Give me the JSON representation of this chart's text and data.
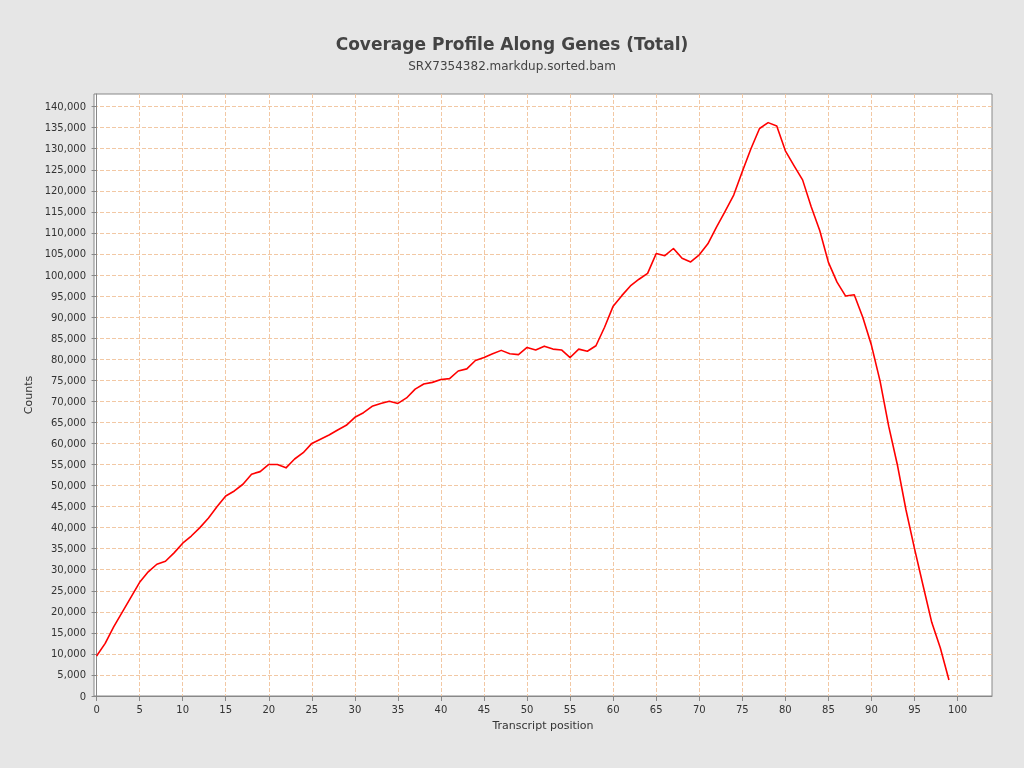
{
  "chart_data": {
    "type": "line",
    "title": "Coverage Profile Along Genes (Total)",
    "subtitle": "SRX7354382.markdup.sorted.bam",
    "xlabel": "Transcript position",
    "ylabel": "Counts",
    "x": [
      0,
      1,
      2,
      3,
      4,
      5,
      6,
      7,
      8,
      9,
      10,
      11,
      12,
      13,
      14,
      15,
      16,
      17,
      18,
      19,
      20,
      21,
      22,
      23,
      24,
      25,
      26,
      27,
      28,
      29,
      30,
      31,
      32,
      33,
      34,
      35,
      36,
      37,
      38,
      39,
      40,
      41,
      42,
      43,
      44,
      45,
      46,
      47,
      48,
      49,
      50,
      51,
      52,
      53,
      54,
      55,
      56,
      57,
      58,
      59,
      60,
      61,
      62,
      63,
      64,
      65,
      66,
      67,
      68,
      69,
      70,
      71,
      72,
      73,
      74,
      75,
      76,
      77,
      78,
      79,
      80,
      81,
      82,
      83,
      84,
      85,
      86,
      87,
      88,
      89,
      90,
      91,
      92,
      93,
      94,
      95,
      96,
      97,
      98,
      99
    ],
    "series": [
      {
        "color": "#ff0000",
        "values": [
          9500,
          12500,
          16500,
          20000,
          23500,
          27000,
          29500,
          31300,
          32000,
          34000,
          36300,
          38000,
          40000,
          42300,
          45000,
          47500,
          48700,
          50300,
          52700,
          53300,
          55000,
          55000,
          54200,
          56300,
          57800,
          60000,
          61000,
          62000,
          63200,
          64300,
          66200,
          67300,
          68800,
          69500,
          70000,
          69500,
          70800,
          72900,
          74100,
          74500,
          75200,
          75400,
          77200,
          77700,
          79700,
          80400,
          81300,
          82100,
          81300,
          81100,
          82800,
          82200,
          83100,
          82400,
          82200,
          80400,
          82400,
          81900,
          83200,
          87600,
          92600,
          95100,
          97400,
          99000,
          100400,
          105100,
          104600,
          106300,
          104000,
          103100,
          104800,
          107400,
          111400,
          115100,
          119000,
          124600,
          130000,
          134800,
          136200,
          135400,
          129500,
          126000,
          122600,
          116200,
          110500,
          103000,
          98300,
          95000,
          95300,
          89900,
          83300,
          74800,
          64100,
          55000,
          44300,
          35000,
          26200,
          17500,
          11400,
          3800
        ]
      }
    ],
    "xlim": [
      -0.3,
      104
    ],
    "xticks": [
      0,
      5,
      10,
      15,
      20,
      25,
      30,
      35,
      40,
      45,
      50,
      55,
      60,
      65,
      70,
      75,
      80,
      85,
      90,
      95,
      100
    ],
    "ylim": [
      0,
      143000
    ],
    "yticks": [
      0,
      {
        "value": 5000,
        "label": "5,000"
      },
      {
        "value": 10000,
        "label": "10,000"
      },
      {
        "value": 15000,
        "label": "15,000"
      },
      {
        "value": 20000,
        "label": "20,000"
      },
      {
        "value": 25000,
        "label": "25,000"
      },
      {
        "value": 30000,
        "label": "30,000"
      },
      {
        "value": 35000,
        "label": "35,000"
      },
      {
        "value": 40000,
        "label": "40,000"
      },
      {
        "value": 45000,
        "label": "45,000"
      },
      {
        "value": 50000,
        "label": "50,000"
      },
      {
        "value": 55000,
        "label": "55,000"
      },
      {
        "value": 60000,
        "label": "60,000"
      },
      {
        "value": 65000,
        "label": "65,000"
      },
      {
        "value": 70000,
        "label": "70,000"
      },
      {
        "value": 75000,
        "label": "75,000"
      },
      {
        "value": 80000,
        "label": "80,000"
      },
      {
        "value": 85000,
        "label": "85,000"
      },
      {
        "value": 90000,
        "label": "90,000"
      },
      {
        "value": 95000,
        "label": "95,000"
      },
      {
        "value": 100000,
        "label": "100,000"
      },
      {
        "value": 105000,
        "label": "105,000"
      },
      {
        "value": 110000,
        "label": "110,000"
      },
      {
        "value": 115000,
        "label": "115,000"
      },
      {
        "value": 120000,
        "label": "120,000"
      },
      {
        "value": 125000,
        "label": "125,000"
      },
      {
        "value": 130000,
        "label": "130,000"
      },
      {
        "value": 135000,
        "label": "135,000"
      },
      {
        "value": 140000,
        "label": "140,000"
      }
    ],
    "grid": true,
    "marker": "none",
    "line_style": "solid"
  }
}
